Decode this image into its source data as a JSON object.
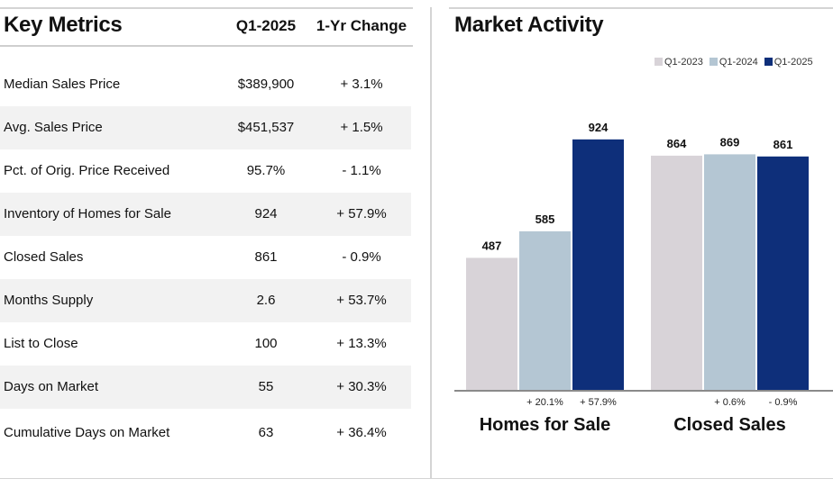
{
  "key_metrics": {
    "title": "Key Metrics",
    "col_period": "Q1-2025",
    "col_change": "1-Yr Change",
    "rows": [
      {
        "metric": "Median Sales Price",
        "value": "$389,900",
        "change": "+ 3.1%"
      },
      {
        "metric": "Avg. Sales Price",
        "value": "$451,537",
        "change": "+ 1.5%"
      },
      {
        "metric": "Pct. of Orig. Price Received",
        "value": "95.7%",
        "change": "- 1.1%"
      },
      {
        "metric": "Inventory of Homes for Sale",
        "value": "924",
        "change": "+ 57.9%"
      },
      {
        "metric": "Closed Sales",
        "value": "861",
        "change": "- 0.9%"
      },
      {
        "metric": "Months Supply",
        "value": "2.6",
        "change": "+ 53.7%"
      },
      {
        "metric": "List to Close",
        "value": "100",
        "change": "+ 13.3%"
      },
      {
        "metric": "Days on Market",
        "value": "55",
        "change": "+ 30.3%"
      },
      {
        "metric": "Cumulative Days on Market",
        "value": "63",
        "change": "+ 36.4%"
      }
    ]
  },
  "chart_data": {
    "type": "bar",
    "title": "Market Activity",
    "categories": [
      "Homes for Sale",
      "Closed Sales"
    ],
    "series": [
      {
        "name": "Q1-2023",
        "color": "#d8d3d8",
        "values": [
          487,
          864
        ]
      },
      {
        "name": "Q1-2024",
        "color": "#b4c6d3",
        "values": [
          585,
          869
        ]
      },
      {
        "name": "Q1-2025",
        "color": "#0e2f7a",
        "values": [
          924,
          861
        ]
      }
    ],
    "change_labels": [
      [
        "",
        "+ 20.1%",
        "+ 57.9%"
      ],
      [
        "",
        "+ 0.6%",
        "- 0.9%"
      ]
    ],
    "ylim": [
      0,
      950
    ],
    "xlabel": "",
    "ylabel": "",
    "legend": "top-right",
    "grid": false
  }
}
